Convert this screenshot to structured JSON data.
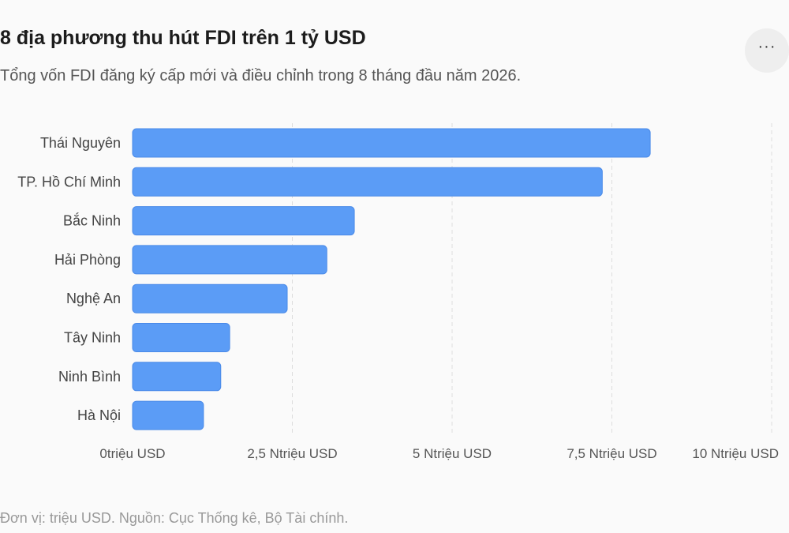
{
  "header": {
    "title": "8 địa phương thu hút FDI trên 1 tỷ USD",
    "subtitle": "Tổng vốn FDI đăng ký cấp mới và điều chỉnh trong 8 tháng đầu năm 2026.",
    "menu_icon": "more-horizontal-icon",
    "menu_label": "···"
  },
  "footer": {
    "note": "Đơn vị: triệu USD. Nguồn: Cục Thống kê, Bộ Tài chính."
  },
  "chart_data": {
    "type": "bar",
    "orientation": "horizontal",
    "categories": [
      "Thái Nguyên",
      "TP. Hồ Chí Minh",
      "Bắc Ninh",
      "Hải Phòng",
      "Nghệ An",
      "Tây Ninh",
      "Ninh Bình",
      "Hà Nội"
    ],
    "values": [
      8100,
      7350,
      3470,
      3040,
      2420,
      1520,
      1380,
      1110
    ],
    "xlim": [
      0,
      10000
    ],
    "xticks": [
      0,
      2500,
      5000,
      7500,
      10000
    ],
    "xtick_labels": [
      "0triệu USD",
      "2,5 Ntriệu USD",
      "5 Ntriệu USD",
      "7,5 Ntriệu USD",
      "10 Ntriệu USD"
    ],
    "grid": "vertical dashed",
    "bar_color": "#5b9cf6",
    "grid_color": "#dddddd"
  }
}
